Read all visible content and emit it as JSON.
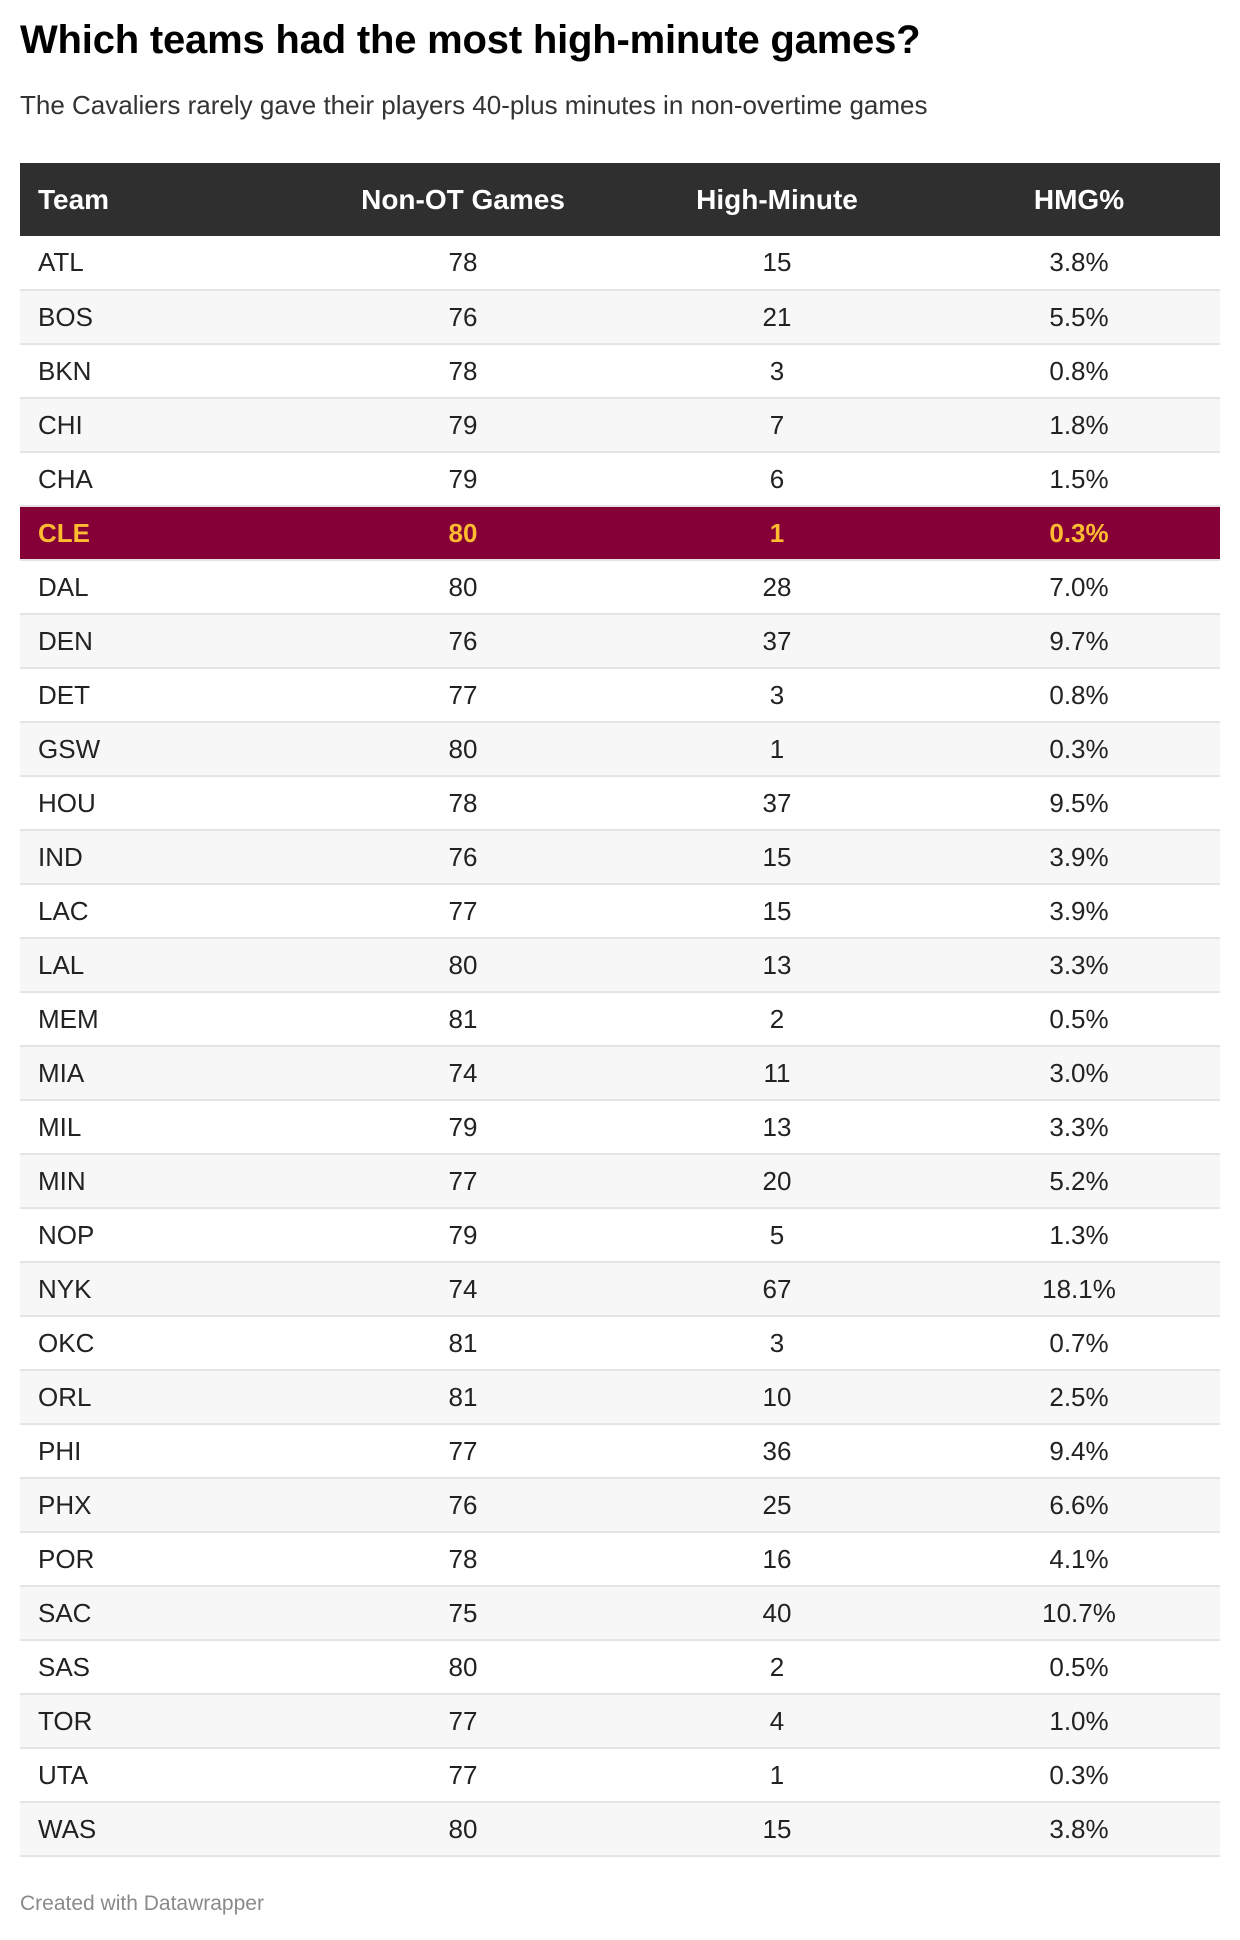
{
  "title": "Which teams had the most high-minute games?",
  "subtitle": "The Cavaliers rarely gave their players 40-plus minutes in non-overtime games",
  "footer": "Created with Datawrapper",
  "colors": {
    "header_bg": "#2f2f2f",
    "highlight_bg": "#860038",
    "highlight_text": "#fdbb30"
  },
  "chart_data": {
    "type": "table",
    "columns": [
      "Team",
      "Non-OT Games",
      "High-Minute",
      "HMG%"
    ],
    "highlight_team": "CLE",
    "rows": [
      [
        "ATL",
        "78",
        "15",
        "3.8%"
      ],
      [
        "BOS",
        "76",
        "21",
        "5.5%"
      ],
      [
        "BKN",
        "78",
        "3",
        "0.8%"
      ],
      [
        "CHI",
        "79",
        "7",
        "1.8%"
      ],
      [
        "CHA",
        "79",
        "6",
        "1.5%"
      ],
      [
        "CLE",
        "80",
        "1",
        "0.3%"
      ],
      [
        "DAL",
        "80",
        "28",
        "7.0%"
      ],
      [
        "DEN",
        "76",
        "37",
        "9.7%"
      ],
      [
        "DET",
        "77",
        "3",
        "0.8%"
      ],
      [
        "GSW",
        "80",
        "1",
        "0.3%"
      ],
      [
        "HOU",
        "78",
        "37",
        "9.5%"
      ],
      [
        "IND",
        "76",
        "15",
        "3.9%"
      ],
      [
        "LAC",
        "77",
        "15",
        "3.9%"
      ],
      [
        "LAL",
        "80",
        "13",
        "3.3%"
      ],
      [
        "MEM",
        "81",
        "2",
        "0.5%"
      ],
      [
        "MIA",
        "74",
        "11",
        "3.0%"
      ],
      [
        "MIL",
        "79",
        "13",
        "3.3%"
      ],
      [
        "MIN",
        "77",
        "20",
        "5.2%"
      ],
      [
        "NOP",
        "79",
        "5",
        "1.3%"
      ],
      [
        "NYK",
        "74",
        "67",
        "18.1%"
      ],
      [
        "OKC",
        "81",
        "3",
        "0.7%"
      ],
      [
        "ORL",
        "81",
        "10",
        "2.5%"
      ],
      [
        "PHI",
        "77",
        "36",
        "9.4%"
      ],
      [
        "PHX",
        "76",
        "25",
        "6.6%"
      ],
      [
        "POR",
        "78",
        "16",
        "4.1%"
      ],
      [
        "SAC",
        "75",
        "40",
        "10.7%"
      ],
      [
        "SAS",
        "80",
        "2",
        "0.5%"
      ],
      [
        "TOR",
        "77",
        "4",
        "1.0%"
      ],
      [
        "UTA",
        "77",
        "1",
        "0.3%"
      ],
      [
        "WAS",
        "80",
        "15",
        "3.8%"
      ]
    ]
  }
}
